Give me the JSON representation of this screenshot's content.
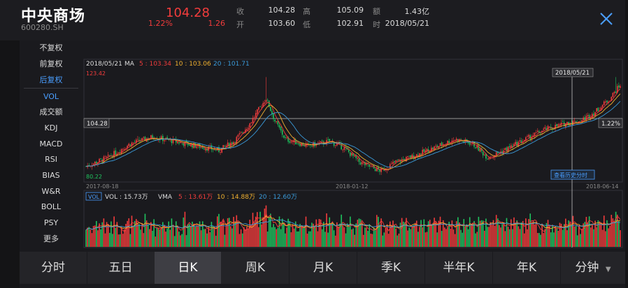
{
  "header": {
    "name": "中央商场",
    "code": "600280.SH",
    "price": "104.28",
    "change_pct": "1.22%",
    "change": "1.26",
    "labels": {
      "close": "收",
      "high": "高",
      "amount": "额",
      "open": "开",
      "low": "低",
      "time": "时"
    },
    "values": {
      "close": "104.28",
      "high": "105.09",
      "amount": "1.43亿",
      "open": "103.60",
      "low": "102.91",
      "time": "2018/05/21"
    }
  },
  "sidebar": {
    "items": [
      {
        "label": "不复权"
      },
      {
        "label": "前复权"
      },
      {
        "label": "后复权"
      },
      {
        "label": "VOL"
      },
      {
        "label": "成交额"
      },
      {
        "label": "KDJ"
      },
      {
        "label": "MACD"
      },
      {
        "label": "RSI"
      },
      {
        "label": "BIAS"
      },
      {
        "label": "W&R"
      },
      {
        "label": "BOLL"
      },
      {
        "label": "PSY"
      },
      {
        "label": "更多"
      }
    ],
    "active": [
      "后复权",
      "VOL"
    ]
  },
  "chart": {
    "ma_date": "2018/05/21",
    "ma_label": "MA",
    "ma5_label": "5 : 103.34",
    "ma10_label": "10 : 103.06",
    "ma20_label": "20 : 101.71",
    "max_price": "123.42",
    "min_price": "80.22",
    "cross_price": "104.28",
    "cross_pct": "1.22%",
    "cross_date": "2018/05/21",
    "history_button": "查看历史分时",
    "date_start": "2017-08-18",
    "date_mid": "2018-01-12",
    "date_end": "2018-06-14",
    "vol_tag": "VOL",
    "vol_label": "VOL : 15.73万",
    "vma_label": "VMA",
    "vma5_label": "5 : 13.61万",
    "vma10_label": "10 : 14.88万",
    "vma20_label": "20 : 12.60万",
    "colors": {
      "up": "#f23c3c",
      "down": "#1fc25e",
      "ma5": "#f23c3c",
      "ma10": "#f0b030",
      "ma20": "#3a9ad9",
      "accent": "#4a9eff"
    }
  },
  "tabs": [
    {
      "label": "分时"
    },
    {
      "label": "五日"
    },
    {
      "label": "日K"
    },
    {
      "label": "周K"
    },
    {
      "label": "月K"
    },
    {
      "label": "季K"
    },
    {
      "label": "半年K"
    },
    {
      "label": "年K"
    },
    {
      "label": "分钟"
    }
  ],
  "active_tab": "日K",
  "icons": {
    "close": "close-icon",
    "dropdown": "triangle-down-icon"
  }
}
